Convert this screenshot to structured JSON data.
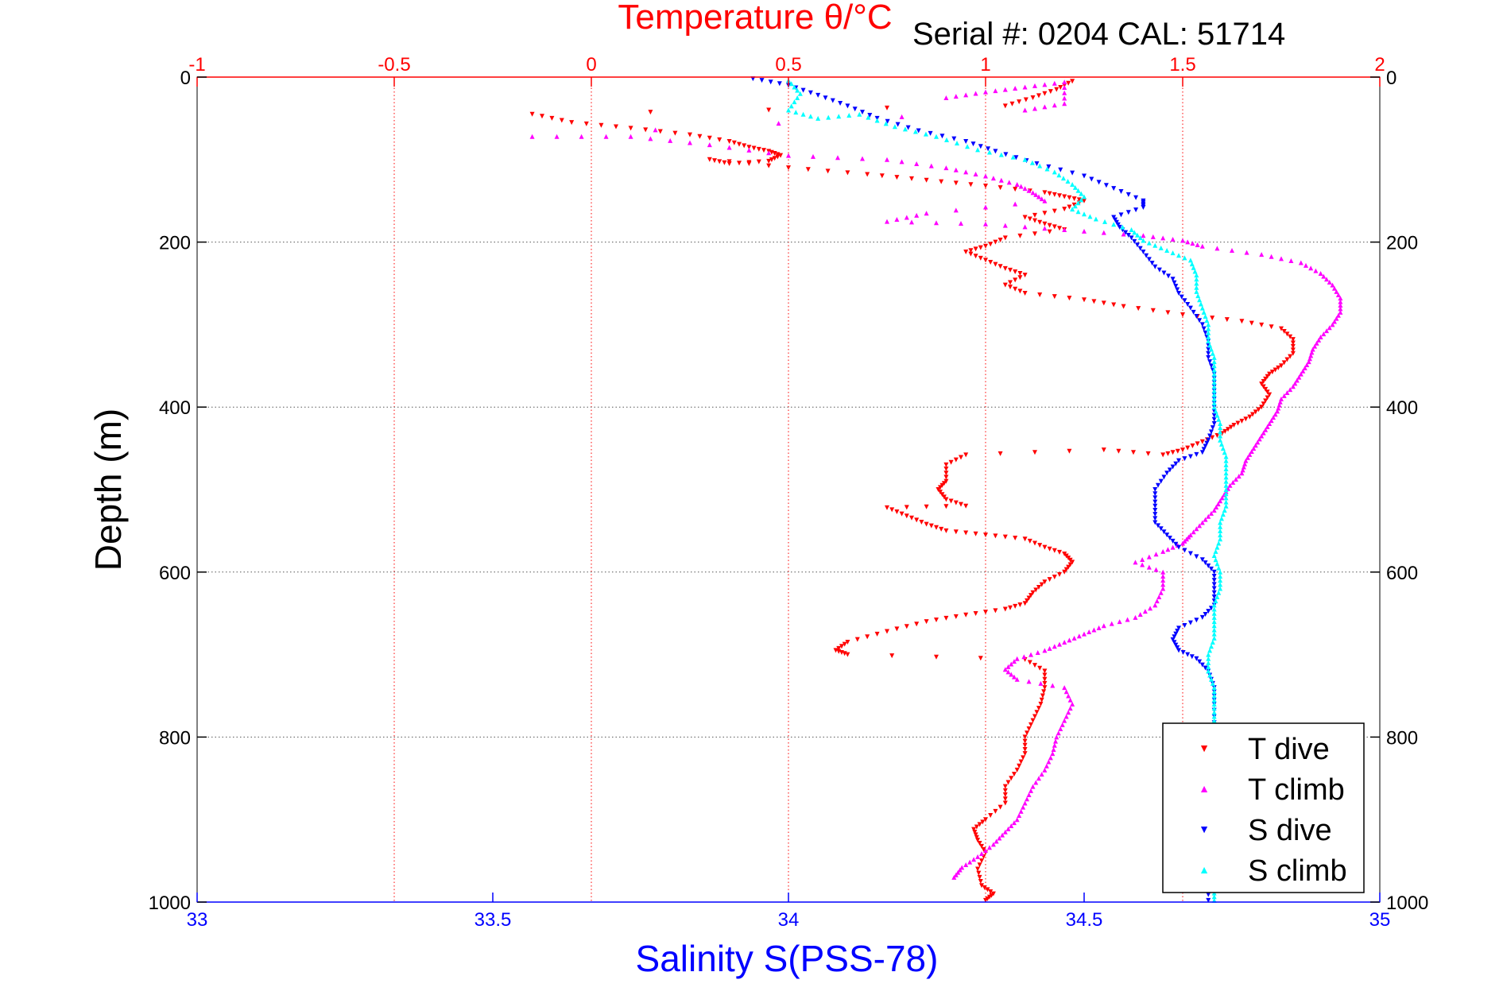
{
  "chart_data": {
    "type": "scatter",
    "title_top": "Temperature θ/°C",
    "serial_label": "Serial #: 0204  CAL: 51714",
    "ylabel": "Depth (m)",
    "xlabel_bottom": "Salinity S(PSS-78)",
    "ylim": [
      1000,
      0
    ],
    "yticks": [
      0,
      200,
      400,
      600,
      800,
      1000
    ],
    "top_axis": {
      "lim": [
        -1,
        2
      ],
      "ticks": [
        -1,
        -0.5,
        0,
        0.5,
        1,
        1.5,
        2
      ],
      "tick_labels": [
        "-1",
        "-0.5",
        "0",
        "0.5",
        "1",
        "1.5",
        "2"
      ],
      "color": "#ff0000"
    },
    "bottom_axis": {
      "lim": [
        33,
        35
      ],
      "ticks": [
        33,
        33.5,
        34,
        34.5,
        35
      ],
      "tick_labels": [
        "33",
        "33.5",
        "34",
        "34.5",
        "35"
      ],
      "color": "#0000ff"
    },
    "grid": true,
    "legend_position": "bottom-right",
    "series": [
      {
        "name": "T dive",
        "axis": "top",
        "color": "#ff0000",
        "marker": "triangle-down",
        "points": [
          [
            1.22,
            5
          ],
          [
            1.18,
            15
          ],
          [
            1.12,
            25
          ],
          [
            1.05,
            35
          ],
          [
            -0.15,
            45
          ],
          [
            -0.05,
            55
          ],
          [
            0.1,
            62
          ],
          [
            0.25,
            70
          ],
          [
            0.35,
            78
          ],
          [
            0.4,
            85
          ],
          [
            0.45,
            90
          ],
          [
            0.48,
            95
          ],
          [
            0.45,
            102
          ],
          [
            0.35,
            105
          ],
          [
            0.3,
            100
          ],
          [
            0.5,
            110
          ],
          [
            0.7,
            118
          ],
          [
            0.85,
            125
          ],
          [
            1.0,
            132
          ],
          [
            1.15,
            140
          ],
          [
            1.2,
            145
          ],
          [
            1.25,
            150
          ],
          [
            1.2,
            160
          ],
          [
            1.1,
            170
          ],
          [
            1.15,
            178
          ],
          [
            1.2,
            185
          ],
          [
            1.05,
            195
          ],
          [
            1.0,
            205
          ],
          [
            0.95,
            212
          ],
          [
            1.0,
            222
          ],
          [
            1.05,
            232
          ],
          [
            1.1,
            240
          ],
          [
            1.05,
            252
          ],
          [
            1.1,
            262
          ],
          [
            1.25,
            270
          ],
          [
            1.35,
            278
          ],
          [
            1.5,
            288
          ],
          [
            1.65,
            296
          ],
          [
            1.75,
            305
          ],
          [
            1.78,
            318
          ],
          [
            1.78,
            335
          ],
          [
            1.75,
            350
          ],
          [
            1.72,
            360
          ],
          [
            1.7,
            372
          ],
          [
            1.72,
            385
          ],
          [
            1.7,
            400
          ],
          [
            1.67,
            412
          ],
          [
            1.63,
            422
          ],
          [
            1.6,
            432
          ],
          [
            1.55,
            442
          ],
          [
            1.5,
            452
          ],
          [
            1.45,
            458
          ],
          [
            1.3,
            452
          ],
          [
            0.95,
            458
          ],
          [
            0.9,
            470
          ],
          [
            0.9,
            490
          ],
          [
            0.88,
            500
          ],
          [
            0.9,
            512
          ],
          [
            0.95,
            520
          ],
          [
            0.75,
            522
          ],
          [
            0.8,
            532
          ],
          [
            0.85,
            542
          ],
          [
            0.9,
            550
          ],
          [
            1.0,
            555
          ],
          [
            1.1,
            560
          ],
          [
            1.15,
            570
          ],
          [
            1.2,
            578
          ],
          [
            1.22,
            588
          ],
          [
            1.2,
            600
          ],
          [
            1.15,
            612
          ],
          [
            1.12,
            625
          ],
          [
            1.1,
            638
          ],
          [
            1.05,
            645
          ],
          [
            0.95,
            652
          ],
          [
            0.85,
            660
          ],
          [
            0.75,
            672
          ],
          [
            0.65,
            685
          ],
          [
            0.62,
            695
          ],
          [
            0.65,
            700
          ],
          [
            1.1,
            706
          ],
          [
            1.15,
            720
          ],
          [
            1.15,
            740
          ],
          [
            1.14,
            760
          ],
          [
            1.12,
            780
          ],
          [
            1.1,
            800
          ],
          [
            1.1,
            820
          ],
          [
            1.08,
            840
          ],
          [
            1.05,
            860
          ],
          [
            1.05,
            880
          ],
          [
            1.0,
            900
          ],
          [
            0.97,
            912
          ],
          [
            0.98,
            925
          ],
          [
            1.0,
            940
          ],
          [
            0.98,
            960
          ],
          [
            0.99,
            980
          ],
          [
            1.02,
            990
          ],
          [
            1.0,
            998
          ]
        ]
      },
      {
        "name": "T climb",
        "axis": "top",
        "color": "#ff00ff",
        "marker": "triangle-up",
        "points": [
          [
            0.9,
            25
          ],
          [
            1.0,
            18
          ],
          [
            1.1,
            12
          ],
          [
            1.2,
            6
          ],
          [
            1.2,
            32
          ],
          [
            1.1,
            40
          ],
          [
            -0.15,
            72
          ],
          [
            0.1,
            72
          ],
          [
            0.3,
            82
          ],
          [
            0.5,
            95
          ],
          [
            0.75,
            100
          ],
          [
            0.9,
            110
          ],
          [
            1.0,
            120
          ],
          [
            1.08,
            130
          ],
          [
            1.12,
            140
          ],
          [
            1.15,
            150
          ],
          [
            0.85,
            165
          ],
          [
            0.75,
            175
          ],
          [
            1.0,
            178
          ],
          [
            1.2,
            185
          ],
          [
            1.4,
            192
          ],
          [
            1.5,
            198
          ],
          [
            1.55,
            205
          ],
          [
            1.7,
            215
          ],
          [
            1.8,
            225
          ],
          [
            1.85,
            238
          ],
          [
            1.88,
            252
          ],
          [
            1.9,
            268
          ],
          [
            1.9,
            285
          ],
          [
            1.88,
            300
          ],
          [
            1.85,
            315
          ],
          [
            1.83,
            330
          ],
          [
            1.82,
            345
          ],
          [
            1.8,
            360
          ],
          [
            1.78,
            375
          ],
          [
            1.75,
            390
          ],
          [
            1.74,
            405
          ],
          [
            1.72,
            420
          ],
          [
            1.7,
            435
          ],
          [
            1.68,
            450
          ],
          [
            1.66,
            465
          ],
          [
            1.65,
            480
          ],
          [
            1.62,
            495
          ],
          [
            1.6,
            510
          ],
          [
            1.58,
            525
          ],
          [
            1.55,
            540
          ],
          [
            1.52,
            555
          ],
          [
            1.5,
            565
          ],
          [
            1.45,
            575
          ],
          [
            1.38,
            588
          ],
          [
            1.45,
            600
          ],
          [
            1.45,
            620
          ],
          [
            1.43,
            640
          ],
          [
            1.38,
            655
          ],
          [
            1.3,
            665
          ],
          [
            1.25,
            675
          ],
          [
            1.2,
            685
          ],
          [
            1.15,
            695
          ],
          [
            1.08,
            705
          ],
          [
            1.05,
            718
          ],
          [
            1.08,
            730
          ],
          [
            1.2,
            740
          ],
          [
            1.22,
            760
          ],
          [
            1.2,
            780
          ],
          [
            1.18,
            800
          ],
          [
            1.17,
            820
          ],
          [
            1.15,
            840
          ],
          [
            1.12,
            860
          ],
          [
            1.1,
            880
          ],
          [
            1.08,
            900
          ],
          [
            1.05,
            915
          ],
          [
            1.02,
            930
          ],
          [
            0.98,
            945
          ],
          [
            0.94,
            958
          ],
          [
            0.92,
            970
          ]
        ]
      },
      {
        "name": "S dive",
        "axis": "bottom",
        "color": "#0000ff",
        "marker": "triangle-down",
        "points": [
          [
            33.94,
            2
          ],
          [
            34.0,
            10
          ],
          [
            34.05,
            22
          ],
          [
            34.1,
            35
          ],
          [
            34.15,
            50
          ],
          [
            34.22,
            65
          ],
          [
            34.3,
            78
          ],
          [
            34.35,
            90
          ],
          [
            34.42,
            105
          ],
          [
            34.5,
            120
          ],
          [
            34.55,
            135
          ],
          [
            34.6,
            150
          ],
          [
            34.6,
            158
          ],
          [
            34.55,
            170
          ],
          [
            34.56,
            182
          ],
          [
            34.58,
            195
          ],
          [
            34.6,
            212
          ],
          [
            34.62,
            230
          ],
          [
            34.65,
            245
          ],
          [
            34.66,
            262
          ],
          [
            34.68,
            280
          ],
          [
            34.7,
            300
          ],
          [
            34.71,
            320
          ],
          [
            34.71,
            340
          ],
          [
            34.72,
            360
          ],
          [
            34.72,
            380
          ],
          [
            34.72,
            400
          ],
          [
            34.72,
            420
          ],
          [
            34.71,
            440
          ],
          [
            34.7,
            455
          ],
          [
            34.66,
            465
          ],
          [
            34.64,
            480
          ],
          [
            34.62,
            500
          ],
          [
            34.62,
            520
          ],
          [
            34.62,
            540
          ],
          [
            34.64,
            555
          ],
          [
            34.66,
            570
          ],
          [
            34.7,
            585
          ],
          [
            34.72,
            600
          ],
          [
            34.72,
            620
          ],
          [
            34.72,
            640
          ],
          [
            34.7,
            655
          ],
          [
            34.66,
            668
          ],
          [
            34.65,
            682
          ],
          [
            34.66,
            695
          ],
          [
            34.69,
            705
          ],
          [
            34.71,
            720
          ],
          [
            34.72,
            740
          ],
          [
            34.72,
            760
          ],
          [
            34.72,
            790
          ],
          [
            34.72,
            820
          ],
          [
            34.72,
            850
          ],
          [
            34.72,
            880
          ],
          [
            34.72,
            910
          ],
          [
            34.71,
            940
          ],
          [
            34.71,
            970
          ],
          [
            34.71,
            998
          ]
        ]
      },
      {
        "name": "S climb",
        "axis": "bottom",
        "color": "#00ffff",
        "marker": "triangle-up",
        "points": [
          [
            34.0,
            4
          ],
          [
            34.02,
            20
          ],
          [
            34.0,
            40
          ],
          [
            34.05,
            50
          ],
          [
            34.12,
            45
          ],
          [
            34.18,
            60
          ],
          [
            34.25,
            72
          ],
          [
            34.32,
            88
          ],
          [
            34.4,
            100
          ],
          [
            34.45,
            115
          ],
          [
            34.48,
            130
          ],
          [
            34.5,
            145
          ],
          [
            34.48,
            160
          ],
          [
            34.52,
            172
          ],
          [
            34.58,
            185
          ],
          [
            34.6,
            198
          ],
          [
            34.64,
            210
          ],
          [
            34.68,
            222
          ],
          [
            34.69,
            240
          ],
          [
            34.69,
            260
          ],
          [
            34.7,
            280
          ],
          [
            34.71,
            300
          ],
          [
            34.71,
            320
          ],
          [
            34.72,
            340
          ],
          [
            34.72,
            360
          ],
          [
            34.72,
            380
          ],
          [
            34.72,
            400
          ],
          [
            34.73,
            420
          ],
          [
            34.73,
            440
          ],
          [
            34.74,
            460
          ],
          [
            34.74,
            480
          ],
          [
            34.74,
            500
          ],
          [
            34.74,
            520
          ],
          [
            34.73,
            540
          ],
          [
            34.73,
            560
          ],
          [
            34.72,
            580
          ],
          [
            34.73,
            600
          ],
          [
            34.73,
            620
          ],
          [
            34.72,
            640
          ],
          [
            34.72,
            660
          ],
          [
            34.72,
            680
          ],
          [
            34.71,
            700
          ],
          [
            34.71,
            720
          ],
          [
            34.72,
            740
          ],
          [
            34.72,
            760
          ],
          [
            34.72,
            780
          ],
          [
            34.72,
            800
          ],
          [
            34.72,
            830
          ],
          [
            34.72,
            860
          ],
          [
            34.72,
            890
          ],
          [
            34.72,
            920
          ],
          [
            34.72,
            950
          ],
          [
            34.72,
            980
          ],
          [
            34.72,
            998
          ]
        ]
      }
    ]
  }
}
